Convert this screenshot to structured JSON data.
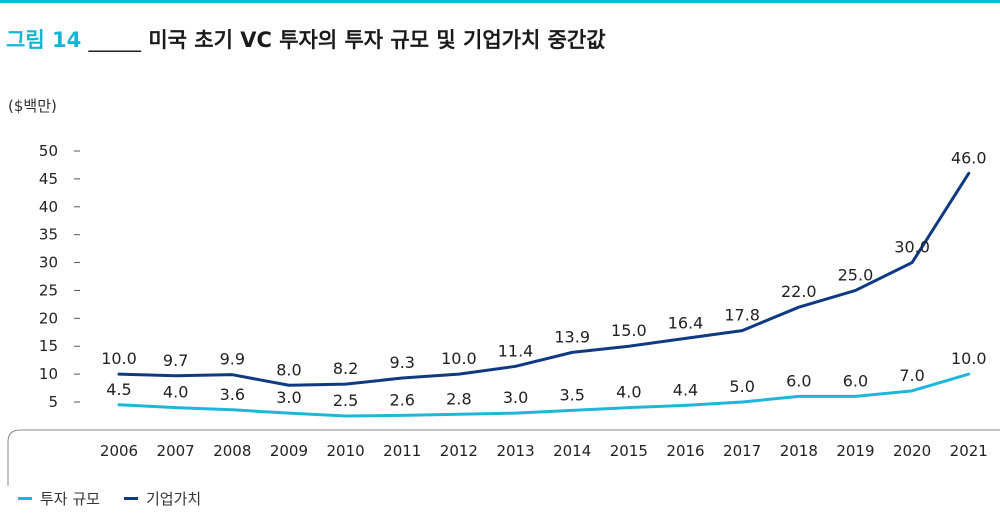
{
  "header": {
    "figure_no": "그림 14",
    "figure_text": "미국 초기 VC 투자의 투자 규모 및 기업가치 중간값",
    "separator": "_____"
  },
  "colors": {
    "accent": "#15b5d8",
    "series_investment": "#1fb6dc",
    "series_valuation": "#0f3a82"
  },
  "chart_data": {
    "type": "line",
    "unit_label": "($백만)",
    "x": [
      "2006",
      "2007",
      "2008",
      "2009",
      "2010",
      "2011",
      "2012",
      "2013",
      "2014",
      "2015",
      "2016",
      "2017",
      "2018",
      "2019",
      "2020",
      "2021"
    ],
    "ylim": [
      5,
      50
    ],
    "yticks": [
      5,
      10,
      15,
      20,
      25,
      30,
      35,
      40,
      45,
      50
    ],
    "grid": false,
    "legend_position": "bottom-left",
    "series": [
      {
        "name": "투자 규모",
        "color": "#1fb6dc",
        "values": [
          4.5,
          4.0,
          3.6,
          3.0,
          2.5,
          2.6,
          2.8,
          3.0,
          3.5,
          4.0,
          4.4,
          5.0,
          6.0,
          6.0,
          7.0,
          10.0
        ],
        "labels": [
          "4.5",
          "4.0",
          "3.6",
          "3.0",
          "2.5",
          "2.6",
          "2.8",
          "3.0",
          "3.5",
          "4.0",
          "4.4",
          "5.0",
          "6.0",
          "6.0",
          "7.0",
          "10.0"
        ]
      },
      {
        "name": "기업가치",
        "color": "#0f3a82",
        "values": [
          10.0,
          9.7,
          9.9,
          8.0,
          8.2,
          9.3,
          10.0,
          11.4,
          13.9,
          15.0,
          16.4,
          17.8,
          22.0,
          25.0,
          30.0,
          46.0
        ],
        "labels": [
          "10.0",
          "9.7",
          "9.9",
          "8.0",
          "8.2",
          "9.3",
          "10.0",
          "11.4",
          "13.9",
          "15.0",
          "16.4",
          "17.8",
          "22.0",
          "25.0",
          "30.0",
          "46.0"
        ]
      }
    ]
  }
}
